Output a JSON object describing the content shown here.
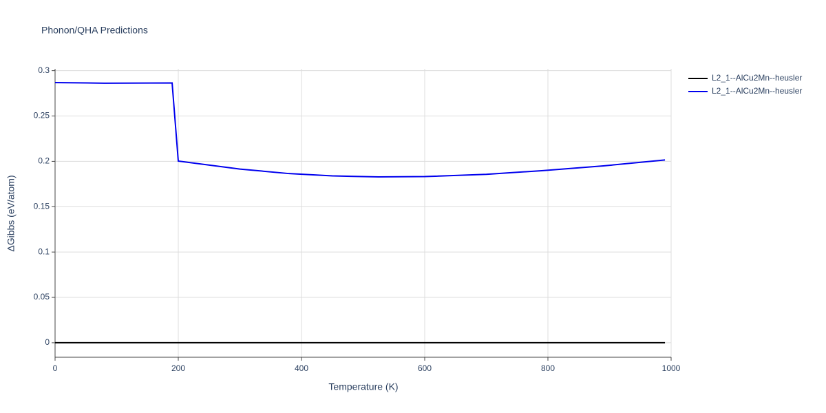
{
  "chart_data": {
    "type": "line",
    "title": "Phonon/QHA Predictions",
    "xlabel": "Temperature (K)",
    "ylabel": "ΔGibbs (eV/atom)",
    "xlim": [
      0,
      1000
    ],
    "xticks": [
      0,
      200,
      400,
      600,
      800,
      1000
    ],
    "ylim": [
      -0.016,
      0.302
    ],
    "yticks": [
      0,
      0.05,
      0.1,
      0.15,
      0.2,
      0.25,
      0.3
    ],
    "grid": true,
    "legend": "right",
    "series": [
      {
        "name": "L2_1--AlCu2Mn--heusler",
        "color": "#000000",
        "x": [
          0,
          990
        ],
        "values": [
          0,
          0
        ]
      },
      {
        "name": "L2_1--AlCu2Mn--heusler",
        "color": "#0000ee",
        "x": [
          0,
          80,
          190,
          200,
          300,
          380,
          450,
          525,
          600,
          700,
          790,
          890,
          990
        ],
        "values": [
          0.2868,
          0.2862,
          0.2864,
          0.2003,
          0.1915,
          0.1865,
          0.184,
          0.1828,
          0.1832,
          0.1857,
          0.1897,
          0.195,
          0.2015
        ]
      }
    ]
  }
}
